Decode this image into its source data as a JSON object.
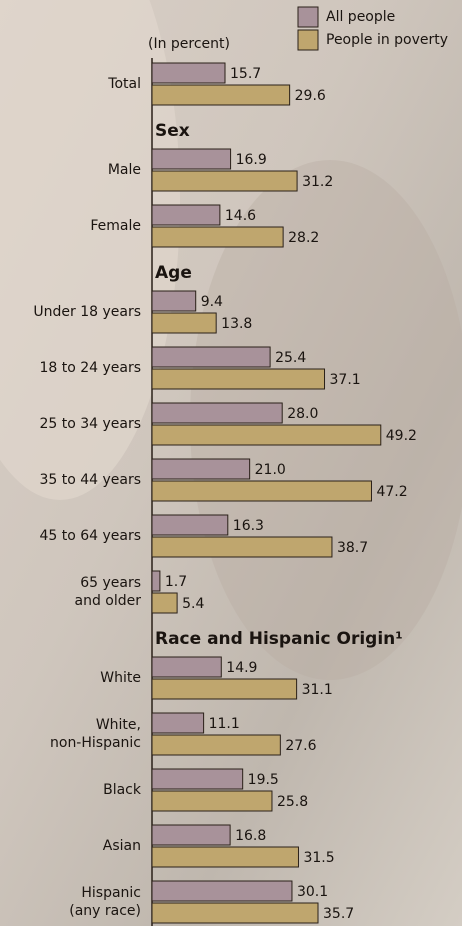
{
  "chart_data": {
    "type": "bar",
    "orientation": "horizontal",
    "subtitle": "(In percent)",
    "categories": [
      "Total",
      "Sex",
      "Male",
      "Female",
      "Age",
      "Under 18 years",
      "18 to 24 years",
      "25 to 34 years",
      "35 to 44 years",
      "45 to 64 years",
      "65 years\nand older",
      "Race and Hispanic Origin¹",
      "White",
      "White,\nnon-Hispanic",
      "Black",
      "Asian",
      "Hispanic\n(any race)"
    ],
    "series": [
      {
        "name": "All people",
        "color": "#a8929a",
        "values": [
          15.7,
          null,
          16.9,
          14.6,
          null,
          9.4,
          25.4,
          28.0,
          21.0,
          16.3,
          1.7,
          null,
          14.9,
          11.1,
          19.5,
          16.8,
          30.1
        ],
        "value_labels": [
          "15.7",
          null,
          "16.9",
          "14.6",
          null,
          "9.4",
          "25.4",
          "28.0",
          "21.0",
          "16.3",
          "1.7",
          null,
          "14.9",
          "11.1",
          "19.5",
          "16.8",
          "30.1"
        ]
      },
      {
        "name": "People in poverty",
        "color": "#bfa66e",
        "values": [
          29.6,
          null,
          31.2,
          28.2,
          null,
          13.8,
          37.1,
          49.2,
          47.2,
          38.7,
          5.4,
          null,
          31.1,
          27.6,
          25.8,
          31.5,
          35.7
        ],
        "value_labels": [
          "29.6",
          null,
          "31.2",
          "28.2",
          null,
          "13.8",
          "37.1",
          "49.2",
          "47.2",
          "38.7",
          "5.4",
          null,
          "31.1",
          "27.6",
          "25.8",
          "31.5",
          "35.7"
        ]
      }
    ]
  }
}
